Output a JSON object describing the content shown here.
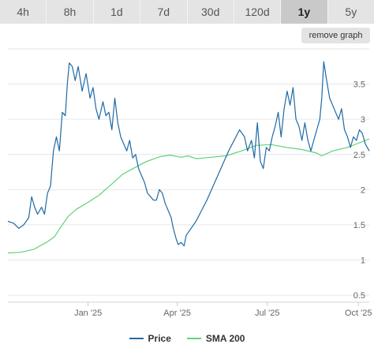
{
  "tabs": [
    {
      "label": "4h",
      "active": false
    },
    {
      "label": "8h",
      "active": false
    },
    {
      "label": "1d",
      "active": false
    },
    {
      "label": "7d",
      "active": false
    },
    {
      "label": "30d",
      "active": false
    },
    {
      "label": "120d",
      "active": false
    },
    {
      "label": "1y",
      "active": true
    },
    {
      "label": "5y",
      "active": false
    }
  ],
  "remove_graph_label": "remove graph",
  "chart_data": {
    "type": "line",
    "x_range": [
      "2024-10-12",
      "2025-10-12"
    ],
    "ylim": [
      0.4,
      4.0
    ],
    "y_ticks": [
      0.5,
      1,
      1.5,
      2,
      2.5,
      3,
      3.5
    ],
    "y_tick_labels": [
      "0.5",
      "1",
      "1.5",
      "2",
      "2.5",
      "3",
      "3.5"
    ],
    "x_ticks": [
      "2025-01-01",
      "2025-04-01",
      "2025-07-01",
      "2025-10-01"
    ],
    "x_tick_labels": [
      "Jan '25",
      "Apr '25",
      "Jul '25",
      "Oct '25"
    ],
    "grid": true,
    "legend_position": "bottom",
    "series": [
      {
        "name": "Price",
        "color": "#1f6aa5",
        "points": [
          [
            "2024-10-12",
            1.55
          ],
          [
            "2024-10-18",
            1.52
          ],
          [
            "2024-10-23",
            1.45
          ],
          [
            "2024-10-28",
            1.5
          ],
          [
            "2024-11-02",
            1.6
          ],
          [
            "2024-11-05",
            1.9
          ],
          [
            "2024-11-08",
            1.75
          ],
          [
            "2024-11-11",
            1.65
          ],
          [
            "2024-11-15",
            1.75
          ],
          [
            "2024-11-18",
            1.65
          ],
          [
            "2024-11-21",
            1.95
          ],
          [
            "2024-11-24",
            2.05
          ],
          [
            "2024-11-27",
            2.55
          ],
          [
            "2024-11-30",
            2.75
          ],
          [
            "2024-12-03",
            2.55
          ],
          [
            "2024-12-06",
            3.1
          ],
          [
            "2024-12-09",
            3.05
          ],
          [
            "2024-12-11",
            3.5
          ],
          [
            "2024-12-13",
            3.8
          ],
          [
            "2024-12-16",
            3.75
          ],
          [
            "2024-12-19",
            3.55
          ],
          [
            "2024-12-22",
            3.75
          ],
          [
            "2024-12-26",
            3.4
          ],
          [
            "2024-12-30",
            3.65
          ],
          [
            "2025-01-03",
            3.3
          ],
          [
            "2025-01-06",
            3.45
          ],
          [
            "2025-01-09",
            3.15
          ],
          [
            "2025-01-12",
            3.0
          ],
          [
            "2025-01-16",
            3.25
          ],
          [
            "2025-01-19",
            3.05
          ],
          [
            "2025-01-22",
            3.1
          ],
          [
            "2025-01-25",
            2.85
          ],
          [
            "2025-01-28",
            3.3
          ],
          [
            "2025-01-31",
            2.95
          ],
          [
            "2025-02-03",
            2.75
          ],
          [
            "2025-02-06",
            2.65
          ],
          [
            "2025-02-09",
            2.55
          ],
          [
            "2025-02-12",
            2.7
          ],
          [
            "2025-02-15",
            2.45
          ],
          [
            "2025-02-18",
            2.5
          ],
          [
            "2025-02-21",
            2.3
          ],
          [
            "2025-02-24",
            2.2
          ],
          [
            "2025-02-27",
            2.1
          ],
          [
            "2025-03-02",
            1.95
          ],
          [
            "2025-03-05",
            1.9
          ],
          [
            "2025-03-08",
            1.85
          ],
          [
            "2025-03-11",
            1.85
          ],
          [
            "2025-03-14",
            2.0
          ],
          [
            "2025-03-17",
            1.95
          ],
          [
            "2025-03-20",
            1.8
          ],
          [
            "2025-03-23",
            1.7
          ],
          [
            "2025-03-26",
            1.6
          ],
          [
            "2025-03-28",
            1.45
          ],
          [
            "2025-03-31",
            1.3
          ],
          [
            "2025-04-02",
            1.22
          ],
          [
            "2025-04-05",
            1.25
          ],
          [
            "2025-04-08",
            1.2
          ],
          [
            "2025-04-10",
            1.35
          ],
          [
            "2025-04-20",
            1.55
          ],
          [
            "2025-05-01",
            1.85
          ],
          [
            "2025-05-12",
            2.2
          ],
          [
            "2025-05-23",
            2.55
          ],
          [
            "2025-06-03",
            2.85
          ],
          [
            "2025-06-08",
            2.75
          ],
          [
            "2025-06-11",
            2.55
          ],
          [
            "2025-06-15",
            2.7
          ],
          [
            "2025-06-18",
            2.45
          ],
          [
            "2025-06-21",
            2.95
          ],
          [
            "2025-06-24",
            2.4
          ],
          [
            "2025-06-27",
            2.3
          ],
          [
            "2025-06-30",
            2.6
          ],
          [
            "2025-07-03",
            2.55
          ],
          [
            "2025-07-06",
            2.75
          ],
          [
            "2025-07-09",
            2.9
          ],
          [
            "2025-07-12",
            3.1
          ],
          [
            "2025-07-15",
            2.75
          ],
          [
            "2025-07-18",
            3.15
          ],
          [
            "2025-07-21",
            3.4
          ],
          [
            "2025-07-24",
            3.2
          ],
          [
            "2025-07-27",
            3.45
          ],
          [
            "2025-07-30",
            3.0
          ],
          [
            "2025-08-02",
            2.9
          ],
          [
            "2025-08-05",
            2.7
          ],
          [
            "2025-08-08",
            2.95
          ],
          [
            "2025-08-11",
            2.7
          ],
          [
            "2025-08-14",
            2.55
          ],
          [
            "2025-08-17",
            2.7
          ],
          [
            "2025-08-20",
            2.85
          ],
          [
            "2025-08-23",
            3.0
          ],
          [
            "2025-08-25",
            3.3
          ],
          [
            "2025-08-27",
            3.82
          ],
          [
            "2025-08-30",
            3.55
          ],
          [
            "2025-09-02",
            3.3
          ],
          [
            "2025-09-05",
            3.2
          ],
          [
            "2025-09-08",
            3.1
          ],
          [
            "2025-09-11",
            3.0
          ],
          [
            "2025-09-14",
            3.15
          ],
          [
            "2025-09-17",
            2.85
          ],
          [
            "2025-09-20",
            2.75
          ],
          [
            "2025-09-23",
            2.6
          ],
          [
            "2025-09-26",
            2.75
          ],
          [
            "2025-09-29",
            2.7
          ],
          [
            "2025-10-02",
            2.85
          ],
          [
            "2025-10-05",
            2.8
          ],
          [
            "2025-10-08",
            2.65
          ],
          [
            "2025-10-12",
            2.55
          ]
        ]
      },
      {
        "name": "SMA 200",
        "color": "#5fd17a",
        "points": [
          [
            "2024-10-12",
            1.1
          ],
          [
            "2024-10-25",
            1.11
          ],
          [
            "2024-11-07",
            1.15
          ],
          [
            "2024-11-20",
            1.25
          ],
          [
            "2024-11-28",
            1.33
          ],
          [
            "2024-12-05",
            1.48
          ],
          [
            "2024-12-12",
            1.62
          ],
          [
            "2024-12-20",
            1.72
          ],
          [
            "2025-01-01",
            1.82
          ],
          [
            "2025-01-12",
            1.92
          ],
          [
            "2025-01-25",
            2.08
          ],
          [
            "2025-02-05",
            2.22
          ],
          [
            "2025-02-18",
            2.32
          ],
          [
            "2025-03-01",
            2.4
          ],
          [
            "2025-03-15",
            2.47
          ],
          [
            "2025-03-25",
            2.49
          ],
          [
            "2025-04-05",
            2.46
          ],
          [
            "2025-04-12",
            2.48
          ],
          [
            "2025-04-20",
            2.44
          ],
          [
            "2025-05-05",
            2.46
          ],
          [
            "2025-05-20",
            2.48
          ],
          [
            "2025-06-05",
            2.55
          ],
          [
            "2025-06-20",
            2.63
          ],
          [
            "2025-07-05",
            2.64
          ],
          [
            "2025-07-20",
            2.6
          ],
          [
            "2025-08-05",
            2.57
          ],
          [
            "2025-08-20",
            2.52
          ],
          [
            "2025-08-25",
            2.48
          ],
          [
            "2025-09-05",
            2.55
          ],
          [
            "2025-09-20",
            2.6
          ],
          [
            "2025-10-01",
            2.66
          ],
          [
            "2025-10-12",
            2.72
          ]
        ]
      }
    ]
  }
}
